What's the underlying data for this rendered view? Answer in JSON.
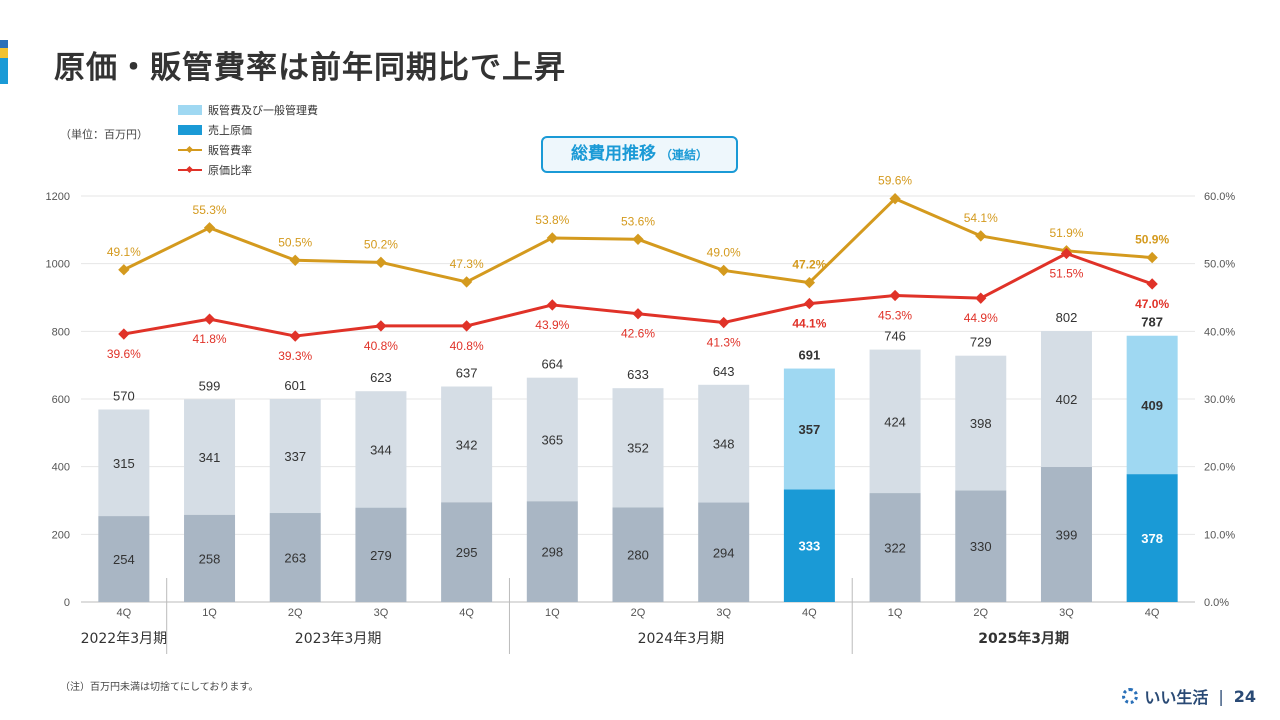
{
  "title": "原価・販管費率は前年同期比で上昇",
  "unit_label": "（単位：百万円）",
  "badge": {
    "main": "総費用推移",
    "sub": "（連結）"
  },
  "note": "（注）百万円未満は切捨てにしております。",
  "footer": {
    "brand": "いい生活",
    "separator": "|",
    "page": "24"
  },
  "colors": {
    "sga": "#d5dde5",
    "cogs": "#a9b6c4",
    "sga_hl": "#9fd8f2",
    "cogs_hl": "#1a9ad6",
    "sga_rate": "#d49a1e",
    "cogs_rate": "#e03228",
    "accent": "#1a9ad6"
  },
  "chart_data": {
    "type": "bar",
    "stacked": true,
    "categories": [
      "4Q",
      "1Q",
      "2Q",
      "3Q",
      "4Q",
      "1Q",
      "2Q",
      "3Q",
      "4Q",
      "1Q",
      "2Q",
      "3Q",
      "4Q"
    ],
    "groups": [
      {
        "label": "2022年3月期",
        "span": 1
      },
      {
        "label": "2023年3月期",
        "span": 4
      },
      {
        "label": "2024年3月期",
        "span": 4
      },
      {
        "label": "2025年3月期",
        "span": 4
      }
    ],
    "highlight_indices": [
      8,
      12
    ],
    "series": [
      {
        "name": "販管費及び一般管理費",
        "kind": "bar",
        "values": [
          315,
          341,
          337,
          344,
          342,
          365,
          352,
          348,
          357,
          424,
          398,
          402,
          409
        ]
      },
      {
        "name": "売上原価",
        "kind": "bar",
        "values": [
          254,
          258,
          263,
          279,
          295,
          298,
          280,
          294,
          333,
          322,
          330,
          399,
          378
        ]
      },
      {
        "name": "販管費率",
        "kind": "line",
        "axis": "right",
        "values": [
          49.1,
          55.3,
          50.5,
          50.2,
          47.3,
          53.8,
          53.6,
          49.0,
          47.2,
          59.6,
          54.1,
          51.9,
          50.9
        ]
      },
      {
        "name": "原価比率",
        "kind": "line",
        "axis": "right",
        "values": [
          39.6,
          41.8,
          39.3,
          40.8,
          40.8,
          43.9,
          42.6,
          41.3,
          44.1,
          45.3,
          44.9,
          51.5,
          47.0
        ]
      }
    ],
    "totals": [
      570,
      599,
      601,
      623,
      637,
      664,
      633,
      643,
      691,
      746,
      729,
      802,
      787
    ],
    "y_left": {
      "min": 0,
      "max": 1200,
      "ticks": [
        "0",
        "200",
        "400",
        "600",
        "800",
        "1000",
        "1200"
      ]
    },
    "y_right": {
      "min": 0,
      "max": 60,
      "ticks": [
        "0.0%",
        "10.0%",
        "20.0%",
        "30.0%",
        "40.0%",
        "50.0%",
        "60.0%"
      ]
    },
    "grid": true,
    "legend_position": "top-left"
  }
}
